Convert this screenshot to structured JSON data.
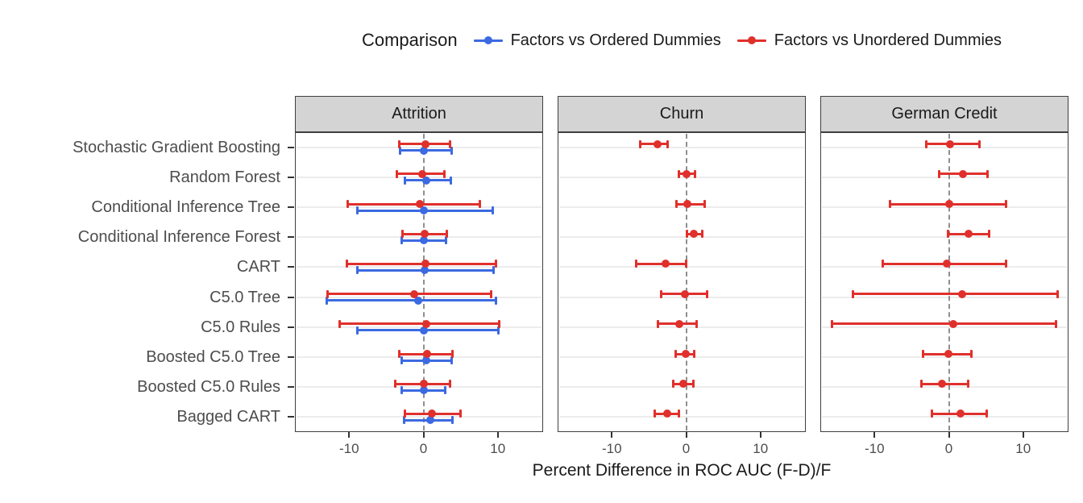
{
  "colors": {
    "blue": "#3b6ae1",
    "red": "#e0302c",
    "strip_bg": "#d4d4d4",
    "panel_border": "#3f3f3f",
    "grid": "#ececec",
    "zero_line": "#8f8f8f",
    "tick": "#333333",
    "axis_text": "#4d4d4d",
    "text": "#333333",
    "background": "#ffffff"
  },
  "legend": {
    "title": "Comparison",
    "position": "top",
    "items": [
      {
        "label": "Factors vs Ordered Dummies",
        "color_key": "blue"
      },
      {
        "label": "Factors vs Unordered Dummies",
        "color_key": "red"
      }
    ]
  },
  "chart_data": {
    "type": "scatter",
    "geom": "pointrange (dot with horizontal error bar), faceted, dodged by comparison",
    "title": "",
    "xlabel": "Percent Difference in ROC AUC (F-D)/F",
    "ylabel": "",
    "x_ticks": [
      -10,
      0,
      10
    ],
    "xlim": [
      -17.3,
      16.1
    ],
    "zero_reference_line": 0,
    "grid": "horizontal major gridlines per category",
    "categories": [
      "Stochastic Gradient Boosting",
      "Random Forest",
      "Conditional Inference Tree",
      "Conditional Inference Forest",
      "CART",
      "C5.0 Tree",
      "C5.0 Rules",
      "Boosted C5.0 Tree",
      "Boosted C5.0 Rules",
      "Bagged CART"
    ],
    "facets": [
      {
        "title": "Attrition",
        "series": [
          {
            "name": "Factors vs Ordered Dummies",
            "color": "blue",
            "values": [
              {
                "mid": 0.1,
                "lo": -3.2,
                "hi": 3.8
              },
              {
                "mid": 0.4,
                "lo": -2.6,
                "hi": 3.7
              },
              {
                "mid": 0.1,
                "lo": -9.0,
                "hi": 9.4
              },
              {
                "mid": 0.1,
                "lo": -3.0,
                "hi": 3.1
              },
              {
                "mid": 0.2,
                "lo": -8.9,
                "hi": 9.5
              },
              {
                "mid": -0.7,
                "lo": -13.1,
                "hi": 9.8
              },
              {
                "mid": 0.1,
                "lo": -8.9,
                "hi": 10.1
              },
              {
                "mid": 0.4,
                "lo": -3.0,
                "hi": 3.9
              },
              {
                "mid": 0.1,
                "lo": -3.0,
                "hi": 3.0
              },
              {
                "mid": 0.9,
                "lo": -2.7,
                "hi": 4.0
              }
            ]
          },
          {
            "name": "Factors vs Unordered Dummies",
            "color": "red",
            "values": [
              {
                "mid": 0.3,
                "lo": -3.3,
                "hi": 3.6
              },
              {
                "mid": -0.2,
                "lo": -3.6,
                "hi": 2.9
              },
              {
                "mid": -0.5,
                "lo": -10.2,
                "hi": 7.6
              },
              {
                "mid": 0.2,
                "lo": -2.9,
                "hi": 3.2
              },
              {
                "mid": 0.3,
                "lo": -10.4,
                "hi": 9.8
              },
              {
                "mid": -1.2,
                "lo": -13.0,
                "hi": 9.2
              },
              {
                "mid": 0.4,
                "lo": -11.3,
                "hi": 10.2
              },
              {
                "mid": 0.5,
                "lo": -3.3,
                "hi": 4.0
              },
              {
                "mid": 0.1,
                "lo": -3.8,
                "hi": 3.6
              },
              {
                "mid": 1.1,
                "lo": -2.6,
                "hi": 5.0
              }
            ]
          }
        ]
      },
      {
        "title": "Churn",
        "series": [
          {
            "name": "Factors vs Unordered Dummies",
            "color": "red",
            "values": [
              {
                "mid": -3.9,
                "lo": -6.2,
                "hi": -2.4
              },
              {
                "mid": 0.0,
                "lo": -1.0,
                "hi": 1.2
              },
              {
                "mid": 0.2,
                "lo": -1.4,
                "hi": 2.5
              },
              {
                "mid": 1.0,
                "lo": 0.0,
                "hi": 2.2
              },
              {
                "mid": -2.8,
                "lo": -6.8,
                "hi": 0.0
              },
              {
                "mid": -0.2,
                "lo": -3.4,
                "hi": 2.9
              },
              {
                "mid": -0.9,
                "lo": -3.9,
                "hi": 1.5
              },
              {
                "mid": -0.1,
                "lo": -1.5,
                "hi": 1.1
              },
              {
                "mid": -0.4,
                "lo": -1.8,
                "hi": 1.0
              },
              {
                "mid": -2.5,
                "lo": -4.3,
                "hi": -0.9
              }
            ]
          }
        ]
      },
      {
        "title": "German Credit",
        "series": [
          {
            "name": "Factors vs Unordered Dummies",
            "color": "red",
            "values": [
              {
                "mid": 0.2,
                "lo": -3.1,
                "hi": 4.2
              },
              {
                "mid": 1.9,
                "lo": -1.4,
                "hi": 5.3
              },
              {
                "mid": 0.0,
                "lo": -8.0,
                "hi": 7.8
              },
              {
                "mid": 2.7,
                "lo": -0.2,
                "hi": 5.5
              },
              {
                "mid": -0.3,
                "lo": -9.0,
                "hi": 7.8
              },
              {
                "mid": 1.8,
                "lo": -13.0,
                "hi": 14.7
              },
              {
                "mid": 0.6,
                "lo": -15.8,
                "hi": 14.5
              },
              {
                "mid": -0.1,
                "lo": -3.5,
                "hi": 3.1
              },
              {
                "mid": -0.9,
                "lo": -3.7,
                "hi": 2.7
              },
              {
                "mid": 1.6,
                "lo": -2.3,
                "hi": 5.2
              }
            ]
          }
        ]
      }
    ]
  }
}
